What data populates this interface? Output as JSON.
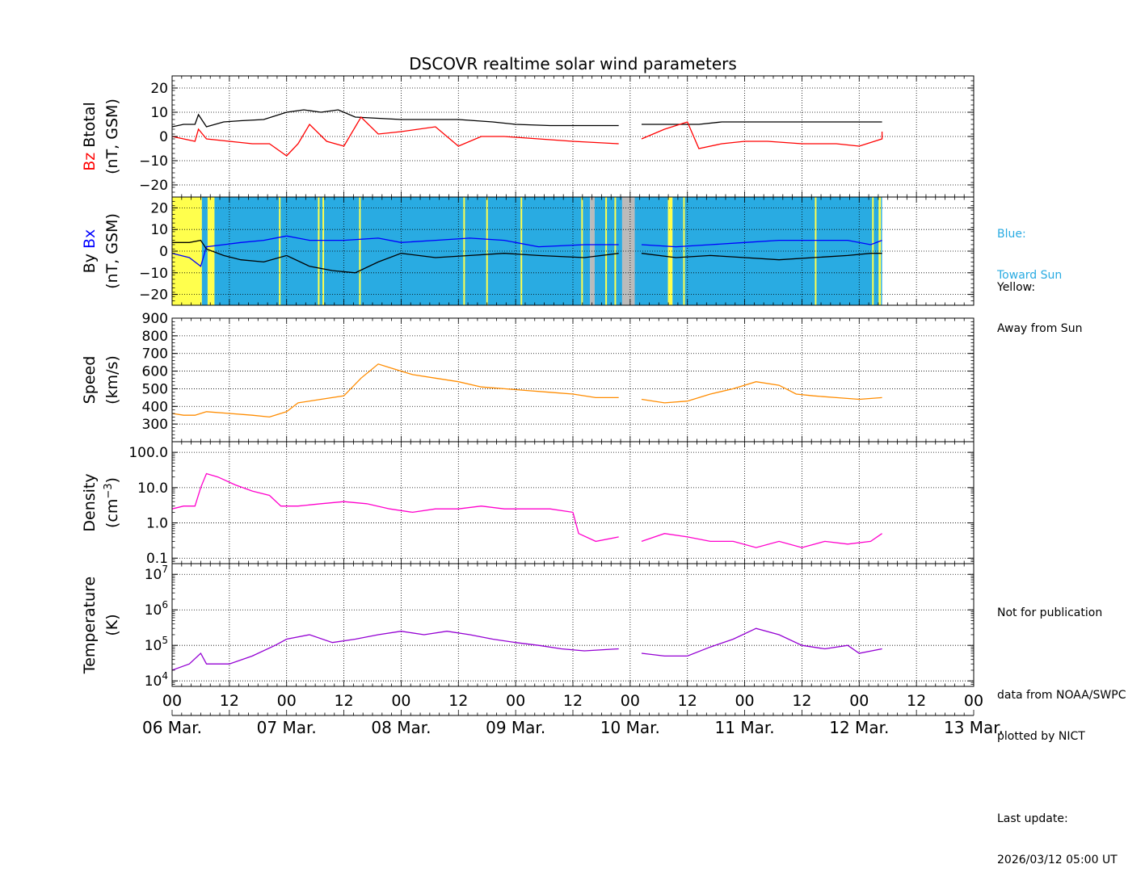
{
  "chart_data": {
    "type": "line",
    "title": "DSCOVR realtime solar wind parameters",
    "x_tick_labels": [
      "00",
      "12",
      "00",
      "12",
      "00",
      "12",
      "00",
      "12",
      "00",
      "12",
      "00",
      "12",
      "00",
      "12",
      "00"
    ],
    "x_date_labels": [
      "06 Mar.",
      "07 Mar.",
      "08 Mar.",
      "09 Mar.",
      "10 Mar.",
      "11 Mar.",
      "12 Mar.",
      "13 Mar."
    ],
    "x_range_days": [
      0,
      7
    ],
    "grid": true,
    "panels": [
      {
        "name": "bfield",
        "ylabel_lines": [
          [
            {
              "text": "Bz",
              "color": "#ff0000"
            },
            {
              "text": "Btotal",
              "color": "#000000"
            }
          ],
          [
            {
              "text": "(nT, GSM)",
              "color": "#000000"
            }
          ]
        ],
        "ylim": [
          -25,
          25
        ],
        "yticks": [
          -20,
          -10,
          0,
          10,
          20
        ],
        "ytick_labels": [
          "−20",
          "−10",
          "0",
          "10",
          "20"
        ],
        "series": [
          {
            "key": "Btotal",
            "color": "#000000",
            "x": [
              0,
              0.1,
              0.2,
              0.23,
              0.3,
              0.45,
              0.6,
              0.8,
              1.0,
              1.15,
              1.3,
              1.45,
              1.6,
              1.8,
              2.0,
              2.2,
              2.5,
              2.8,
              3.0,
              3.3,
              3.6,
              3.9,
              3.9,
              4.1,
              4.3,
              4.6,
              4.8,
              5.0,
              5.3,
              5.6,
              5.9,
              6.2,
              6.2
            ],
            "y": [
              4,
              5,
              5,
              9,
              4,
              6,
              6.5,
              7,
              10,
              11,
              10,
              11,
              8,
              7.5,
              7,
              7,
              7,
              6,
              5,
              4.5,
              4.5,
              4.5,
              null,
              5,
              5,
              5,
              6,
              6,
              6,
              6,
              6,
              6,
              6
            ]
          },
          {
            "key": "Bz",
            "color": "#ff0000",
            "x": [
              0,
              0.1,
              0.2,
              0.23,
              0.3,
              0.5,
              0.7,
              0.85,
              1.0,
              1.1,
              1.2,
              1.35,
              1.5,
              1.65,
              1.8,
              2.0,
              2.3,
              2.5,
              2.7,
              2.9,
              3.2,
              3.5,
              3.9,
              3.9,
              4.1,
              4.3,
              4.5,
              4.6,
              4.8,
              5.0,
              5.2,
              5.5,
              5.8,
              6.0,
              6.2,
              6.2
            ],
            "y": [
              0,
              -1,
              -2,
              3,
              -1,
              -2,
              -3,
              -3,
              -8,
              -3,
              5,
              -2,
              -4,
              8,
              1,
              2,
              4,
              -4,
              0,
              0,
              -1,
              -2,
              -3,
              null,
              -1,
              3,
              6,
              -5,
              -3,
              -2,
              -2,
              -3,
              -3,
              -4,
              -1,
              2
            ]
          }
        ]
      },
      {
        "name": "bxby",
        "ylabel_lines": [
          [
            {
              "text": "By",
              "color": "#000000"
            },
            {
              "text": "Bx",
              "color": "#0000ff"
            }
          ],
          [
            {
              "text": "(nT, GSM)",
              "color": "#000000"
            }
          ]
        ],
        "ylim": [
          -25,
          25
        ],
        "yticks": [
          -20,
          -10,
          0,
          10,
          20
        ],
        "ytick_labels": [
          "−20",
          "−10",
          "0",
          "10",
          "20"
        ],
        "background_segments": [
          {
            "from": 0,
            "to": 0.26,
            "color": "#ffff4d"
          },
          {
            "from": 0.26,
            "to": 0.31,
            "color": "#29abe2"
          },
          {
            "from": 0.31,
            "to": 0.37,
            "color": "#ffff4d"
          },
          {
            "from": 0.37,
            "to": 3.65,
            "color": "#29abe2"
          },
          {
            "from": 3.65,
            "to": 3.69,
            "color": "#bbbbbb"
          },
          {
            "from": 3.69,
            "to": 3.93,
            "color": "#29abe2"
          },
          {
            "from": 3.93,
            "to": 4.04,
            "color": "#bbbbbb"
          },
          {
            "from": 4.04,
            "to": 4.33,
            "color": "#29abe2"
          },
          {
            "from": 4.33,
            "to": 4.37,
            "color": "#ffff4d"
          },
          {
            "from": 4.37,
            "to": 6.17,
            "color": "#29abe2"
          },
          {
            "from": 6.17,
            "to": 6.19,
            "color": "#ffff4d"
          },
          {
            "from": 6.19,
            "to": 6.2,
            "color": "#29abe2"
          }
        ],
        "yellow_streaks": [
          0.94,
          1.28,
          1.32,
          1.64,
          2.55,
          2.75,
          3.05,
          3.58,
          3.79,
          3.87,
          4.47,
          5.62,
          6.12
        ],
        "series": [
          {
            "key": "Bx",
            "color": "#0000ff",
            "x": [
              0,
              0.15,
              0.25,
              0.3,
              0.45,
              0.6,
              0.8,
              1.0,
              1.2,
              1.5,
              1.8,
              2.0,
              2.3,
              2.6,
              2.9,
              3.2,
              3.6,
              3.9,
              3.9,
              4.1,
              4.4,
              4.7,
              5.0,
              5.3,
              5.6,
              5.9,
              6.1,
              6.2
            ],
            "y": [
              -1,
              -3,
              -7,
              2,
              3,
              4,
              5,
              7,
              5,
              5,
              6,
              4,
              5,
              6,
              5,
              2,
              3,
              3,
              null,
              3,
              2,
              3,
              4,
              5,
              5,
              5,
              3,
              5
            ]
          },
          {
            "key": "By",
            "color": "#000000",
            "x": [
              0,
              0.15,
              0.25,
              0.3,
              0.45,
              0.6,
              0.8,
              1.0,
              1.2,
              1.4,
              1.6,
              1.8,
              2.0,
              2.3,
              2.6,
              2.9,
              3.2,
              3.6,
              3.9,
              3.9,
              4.1,
              4.4,
              4.7,
              5.0,
              5.3,
              5.6,
              5.9,
              6.1,
              6.2
            ],
            "y": [
              4,
              4,
              5,
              1,
              -2,
              -4,
              -5,
              -2,
              -7,
              -9,
              -10,
              -5,
              -1,
              -3,
              -2,
              -1,
              -2,
              -3,
              -1,
              null,
              -1,
              -3,
              -2,
              -3,
              -4,
              -3,
              -2,
              -1,
              -1
            ]
          }
        ]
      },
      {
        "name": "speed",
        "ylabel_lines": [
          [
            {
              "text": "Speed",
              "color": "#000000"
            }
          ],
          [
            {
              "text": "(km/s)",
              "color": "#000000"
            }
          ]
        ],
        "ylim": [
          200,
          900
        ],
        "yticks": [
          300,
          400,
          500,
          600,
          700,
          800,
          900
        ],
        "ytick_labels": [
          "300",
          "400",
          "500",
          "600",
          "700",
          "800",
          "900"
        ],
        "series": [
          {
            "key": "Speed",
            "color": "#ff8c00",
            "x": [
              0,
              0.1,
              0.2,
              0.3,
              0.5,
              0.7,
              0.85,
              1.0,
              1.1,
              1.3,
              1.5,
              1.65,
              1.8,
              1.9,
              2.1,
              2.3,
              2.5,
              2.7,
              2.9,
              3.1,
              3.3,
              3.5,
              3.7,
              3.9,
              3.9,
              4.1,
              4.3,
              4.5,
              4.7,
              4.9,
              5.1,
              5.3,
              5.45,
              5.6,
              5.8,
              6.0,
              6.2
            ],
            "y": [
              360,
              350,
              350,
              370,
              360,
              350,
              340,
              370,
              420,
              440,
              460,
              560,
              640,
              620,
              580,
              560,
              540,
              510,
              500,
              490,
              480,
              470,
              450,
              450,
              null,
              440,
              420,
              430,
              470,
              500,
              540,
              520,
              470,
              460,
              450,
              440,
              450
            ]
          }
        ]
      },
      {
        "name": "density",
        "ylabel_lines": [
          [
            {
              "text": "Density",
              "color": "#000000"
            }
          ],
          [
            {
              "text": "(cm",
              "color": "#000000"
            },
            {
              "text": "−3",
              "color": "#000000",
              "sup": true
            },
            {
              "text": ")",
              "color": "#000000"
            }
          ]
        ],
        "ylog": true,
        "ylim": [
          0.07,
          200
        ],
        "yticks": [
          0.1,
          1.0,
          10.0,
          100.0
        ],
        "ytick_labels": [
          "0.1",
          "1.0",
          "10.0",
          "100.0"
        ],
        "series": [
          {
            "key": "Density",
            "color": "#ff00cc",
            "x": [
              0,
              0.1,
              0.2,
              0.25,
              0.3,
              0.4,
              0.55,
              0.7,
              0.85,
              0.95,
              1.1,
              1.3,
              1.5,
              1.7,
              1.9,
              2.1,
              2.3,
              2.5,
              2.7,
              2.9,
              3.1,
              3.3,
              3.5,
              3.55,
              3.7,
              3.9,
              3.9,
              4.1,
              4.3,
              4.5,
              4.7,
              4.9,
              5.1,
              5.3,
              5.5,
              5.7,
              5.9,
              6.1,
              6.2
            ],
            "y": [
              2.5,
              3,
              3,
              10,
              25,
              20,
              12,
              8,
              6,
              3,
              3,
              3.5,
              4,
              3.5,
              2.5,
              2,
              2.5,
              2.5,
              3,
              2.5,
              2.5,
              2.5,
              2,
              0.5,
              0.3,
              0.4,
              null,
              0.3,
              0.5,
              0.4,
              0.3,
              0.3,
              0.2,
              0.3,
              0.2,
              0.3,
              0.25,
              0.3,
              0.5
            ]
          }
        ]
      },
      {
        "name": "temperature",
        "ylabel_lines": [
          [
            {
              "text": "Temperature",
              "color": "#000000"
            }
          ],
          [
            {
              "text": "(K)",
              "color": "#000000"
            }
          ]
        ],
        "ylog": true,
        "ylim": [
          7000,
          20000000
        ],
        "yticks": [
          10000,
          100000,
          1000000,
          10000000
        ],
        "ytick_labels": [
          {
            "base": "10",
            "exp": "4"
          },
          {
            "base": "10",
            "exp": "5"
          },
          {
            "base": "10",
            "exp": "6"
          },
          {
            "base": "10",
            "exp": "7"
          }
        ],
        "series": [
          {
            "key": "Temperature",
            "color": "#9400d3",
            "x": [
              0,
              0.15,
              0.25,
              0.3,
              0.5,
              0.7,
              0.9,
              1.0,
              1.2,
              1.4,
              1.6,
              1.8,
              2.0,
              2.2,
              2.4,
              2.6,
              2.8,
              3.0,
              3.2,
              3.4,
              3.6,
              3.9,
              3.9,
              4.1,
              4.3,
              4.5,
              4.7,
              4.9,
              5.1,
              5.3,
              5.5,
              5.7,
              5.9,
              6.0,
              6.2
            ],
            "y": [
              20000,
              30000,
              60000,
              30000,
              30000,
              50000,
              100000,
              150000,
              200000,
              120000,
              150000,
              200000,
              250000,
              200000,
              250000,
              200000,
              150000,
              120000,
              100000,
              80000,
              70000,
              80000,
              null,
              60000,
              50000,
              50000,
              90000,
              150000,
              300000,
              200000,
              100000,
              80000,
              100000,
              60000,
              80000
            ]
          }
        ]
      }
    ]
  },
  "notes": {
    "blue_line1": "Blue:",
    "blue_line2": "Toward Sun",
    "yellow_line1": "Yellow:",
    "yellow_line2": "Away from Sun",
    "not_for_publication": "Not for publication",
    "data_from": "data from NOAA/SWPC",
    "plotted_by": "plotted by NICT",
    "last_update_label": "Last update:",
    "last_update_value": "2026/03/12 05:00 UT"
  }
}
